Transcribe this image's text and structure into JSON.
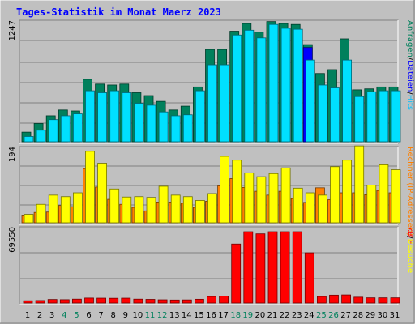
{
  "chart_data": [
    {
      "type": "bar",
      "title": "Tages-Statistik im Monat Maerz 2023",
      "panel": "top",
      "ymax_label": "1247",
      "ylim": [
        0,
        1247
      ],
      "legend": [
        {
          "text": "Anfragen",
          "color": "#00805c"
        },
        {
          "text": "/",
          "color": "#000000"
        },
        {
          "text": "Dateien",
          "color": "#0000ff"
        },
        {
          "text": "/",
          "color": "#000000"
        },
        {
          "text": "Hits",
          "color": "#00c0ff"
        }
      ],
      "categories": [
        "1",
        "2",
        "3",
        "4",
        "5",
        "6",
        "7",
        "8",
        "9",
        "10",
        "11",
        "12",
        "13",
        "14",
        "15",
        "16",
        "17",
        "18",
        "19",
        "20",
        "21",
        "22",
        "23",
        "24",
        "25",
        "26",
        "27",
        "28",
        "29",
        "30",
        "31"
      ],
      "series": [
        {
          "name": "Hits",
          "color": "#00e0ff",
          "values": [
            55,
            120,
            230,
            270,
            290,
            530,
            510,
            530,
            510,
            400,
            380,
            310,
            270,
            280,
            530,
            800,
            800,
            1110,
            1160,
            1080,
            1220,
            1180,
            1170,
            850,
            590,
            560,
            850,
            470,
            520,
            530,
            530
          ]
        },
        {
          "name": "Dateien",
          "color": "#0000ff",
          "values": [
            0,
            0,
            0,
            0,
            0,
            0,
            0,
            0,
            0,
            0,
            0,
            0,
            0,
            0,
            0,
            0,
            0,
            0,
            0,
            0,
            0,
            0,
            0,
            980,
            0,
            0,
            0,
            0,
            0,
            0,
            0
          ]
        },
        {
          "name": "Anfragen",
          "color": "#00805c",
          "values": [
            100,
            190,
            270,
            330,
            320,
            650,
            600,
            590,
            600,
            510,
            480,
            420,
            330,
            370,
            570,
            960,
            960,
            1150,
            1230,
            1140,
            1250,
            1230,
            1220,
            1010,
            710,
            750,
            1070,
            540,
            550,
            570,
            570
          ]
        }
      ]
    },
    {
      "type": "bar",
      "panel": "middle",
      "ymax_label": "194",
      "ylim": [
        0,
        194
      ],
      "legend": [
        {
          "text": "Rechner (IP-Adressen)",
          "color": "#ff8000"
        },
        {
          "text": "/",
          "color": "#000000"
        },
        {
          "text": "Besuche",
          "color": "#ffff00"
        }
      ],
      "categories": [
        "1",
        "2",
        "3",
        "4",
        "5",
        "6",
        "7",
        "8",
        "9",
        "10",
        "11",
        "12",
        "13",
        "14",
        "15",
        "16",
        "17",
        "18",
        "19",
        "20",
        "21",
        "22",
        "23",
        "24",
        "25",
        "26",
        "27",
        "28",
        "29",
        "30",
        "31"
      ],
      "series": [
        {
          "name": "Besuche",
          "color": "#ffff00",
          "values": [
            22,
            48,
            72,
            68,
            78,
            186,
            155,
            88,
            67,
            68,
            66,
            95,
            72,
            68,
            58,
            76,
            173,
            163,
            130,
            120,
            128,
            143,
            90,
            78,
            72,
            146,
            163,
            200,
            98,
            151,
            138
          ]
        },
        {
          "name": "Rechner (IP-Adressen)",
          "color": "#ff8000",
          "values": [
            18,
            27,
            28,
            45,
            42,
            141,
            93,
            61,
            48,
            40,
            31,
            54,
            54,
            51,
            40,
            56,
            96,
            115,
            92,
            82,
            72,
            82,
            63,
            53,
            91,
            60,
            78,
            78,
            73,
            84,
            78
          ]
        }
      ]
    },
    {
      "type": "bar",
      "panel": "bottom",
      "ymax_label": "69550",
      "ylim": [
        0,
        69550
      ],
      "legend": [
        {
          "text": "kB F",
          "color": "#ff0000"
        }
      ],
      "categories": [
        "1",
        "2",
        "3",
        "4",
        "5",
        "6",
        "7",
        "8",
        "9",
        "10",
        "11",
        "12",
        "13",
        "14",
        "15",
        "16",
        "17",
        "18",
        "19",
        "20",
        "21",
        "22",
        "23",
        "24",
        "25",
        "26",
        "27",
        "28",
        "29",
        "30",
        "31"
      ],
      "series": [
        {
          "name": "kB F",
          "color": "#ff0000",
          "values": [
            2100,
            2300,
            3300,
            3100,
            3600,
            4600,
            4500,
            4400,
            4500,
            3600,
            3400,
            3000,
            2800,
            2900,
            3500,
            6000,
            6500,
            55000,
            66500,
            64500,
            66500,
            66500,
            66500,
            46800,
            6000,
            7300,
            7500,
            5400,
            4800,
            4800,
            4800
          ]
        }
      ]
    }
  ],
  "weekend_days": [
    "4",
    "5",
    "11",
    "12",
    "18",
    "19",
    "25",
    "26"
  ],
  "colors": {
    "weekday": "#000000",
    "weekend": "#00805c",
    "frame_bg": "#c0c0c0",
    "plot_bg": "#c0c0c0",
    "grid": "#808080",
    "title": "#0000ff"
  }
}
